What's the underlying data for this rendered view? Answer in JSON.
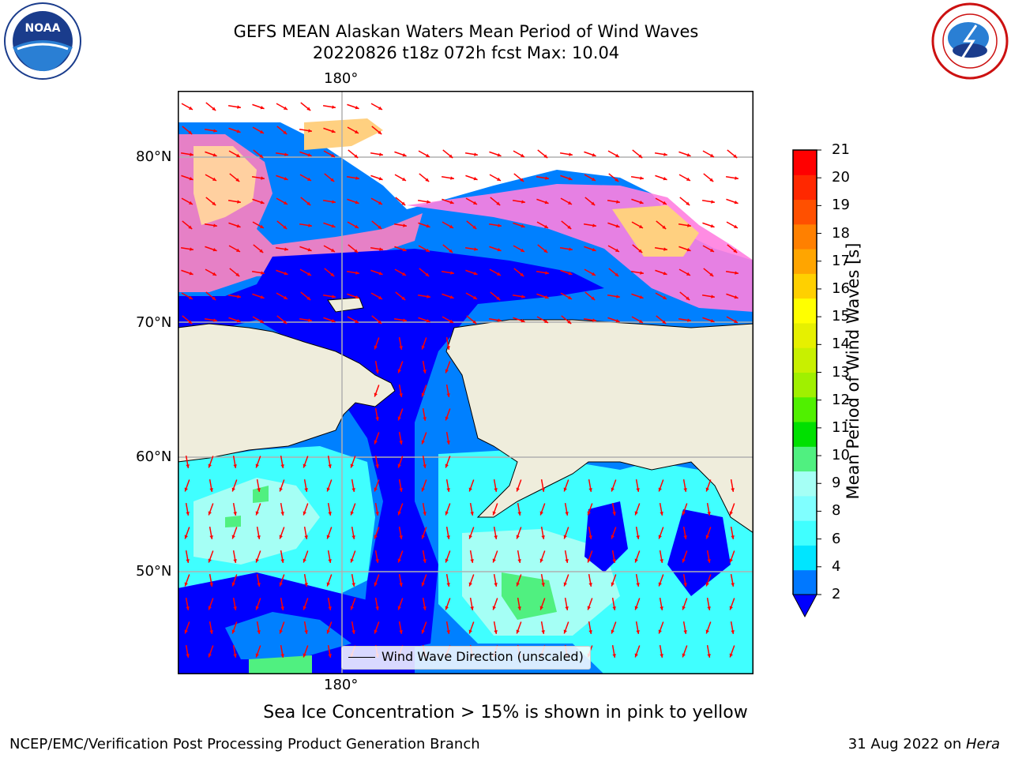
{
  "header": {
    "title_line1": "GEFS MEAN Alaskan Waters Mean Period of Wind Waves",
    "title_line2": "20220826 t18z 072h fcst   Max: 10.04"
  },
  "logos": {
    "left": {
      "text": "NOAA",
      "icon": "noaa-logo"
    },
    "right": {
      "icon": "nws-logo"
    }
  },
  "map": {
    "lon_label_top": "180°",
    "lon_label_bottom": "180°",
    "lat_labels": [
      "80°N",
      "70°N",
      "60°N",
      "50°N"
    ],
    "legend_text": "Wind Wave Direction (unscaled)",
    "colors": {
      "land": "#efeddc",
      "ocean_deep": "#0000ff",
      "ocean_mid": "#0080ff",
      "arrow": "#ff0000"
    }
  },
  "colorbar": {
    "label": "Mean Period of Wind Waves [s]",
    "ticks": [
      "2",
      "4",
      "6",
      "8",
      "9",
      "10",
      "11",
      "12",
      "13",
      "14",
      "15",
      "16",
      "17",
      "18",
      "19",
      "20",
      "21"
    ],
    "colors": [
      "#0078ff",
      "#00e5ff",
      "#40ffff",
      "#80ffff",
      "#a5fff5",
      "#50f080",
      "#00e000",
      "#50f000",
      "#a0f000",
      "#c8f000",
      "#e6f000",
      "#ffff00",
      "#ffd000",
      "#ffa500",
      "#ff8000",
      "#ff5000",
      "#ff2800",
      "#ff0000"
    ],
    "extend_color": "#0000ff"
  },
  "note": "Sea Ice Concentration > 15% is shown in pink to yellow",
  "footer": {
    "left": "NCEP/EMC/Verification Post Processing Product Generation Branch",
    "right_prefix": "31 Aug 2022 on ",
    "right_host": "Hera"
  }
}
